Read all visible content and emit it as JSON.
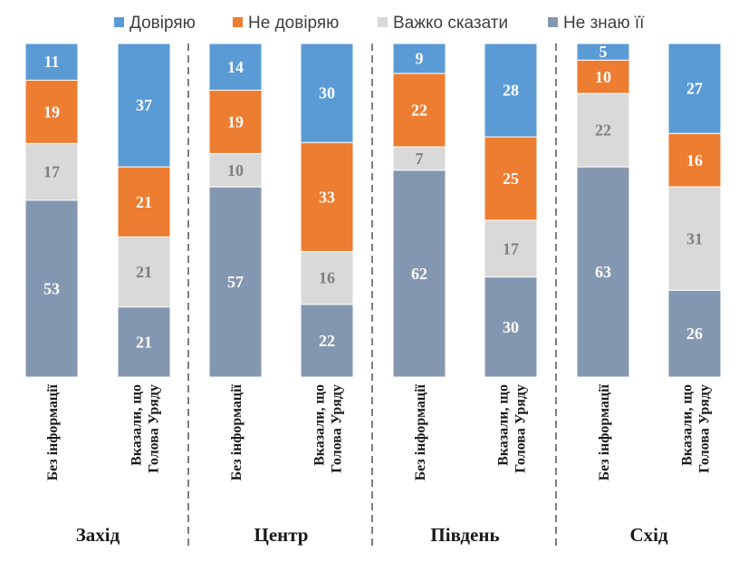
{
  "chart_data": {
    "type": "bar",
    "stacked": true,
    "legend_position": "top",
    "ylim": [
      0,
      100
    ],
    "legend": [
      {
        "name": "Довіряю",
        "color": "#5B9BD5"
      },
      {
        "name": "Не довіряю",
        "color": "#ED7D31"
      },
      {
        "name": "Важко сказати",
        "color": "#D9D9D9"
      },
      {
        "name": "Не знаю її",
        "color": "#8497B0"
      }
    ],
    "series_order_top_to_bottom": [
      "Довіряю",
      "Не довіряю",
      "Важко сказати",
      "Не знаю її"
    ],
    "label_colors": {
      "Довіряю": "#ffffff",
      "Не довіряю": "#ffffff",
      "Важко сказати": "#7f7f7f",
      "Не знаю її": "#ffffff"
    },
    "categories": [
      "Без інформації",
      "Вказали, що Голова Уряду"
    ],
    "category_lines": [
      [
        "Без інформації"
      ],
      [
        "Вказали, що",
        "Голова Уряду"
      ]
    ],
    "groups": [
      {
        "region": "Захід",
        "bars": [
          {
            "category": "Без інформації",
            "values": [
              11,
              19,
              17,
              53
            ]
          },
          {
            "category": "Вказали, що Голова Уряду",
            "values": [
              37,
              21,
              21,
              21
            ]
          }
        ]
      },
      {
        "region": "Центр",
        "bars": [
          {
            "category": "Без інформації",
            "values": [
              14,
              19,
              10,
              57
            ]
          },
          {
            "category": "Вказали, що Голова Уряду",
            "values": [
              30,
              33,
              16,
              22
            ]
          }
        ]
      },
      {
        "region": "Південь",
        "bars": [
          {
            "category": "Без інформації",
            "values": [
              9,
              22,
              7,
              62
            ]
          },
          {
            "category": "Вказали, що Голова Уряду",
            "values": [
              28,
              25,
              17,
              30
            ]
          }
        ]
      },
      {
        "region": "Схід",
        "bars": [
          {
            "category": "Без інформації",
            "values": [
              5,
              10,
              22,
              63
            ]
          },
          {
            "category": "Вказали, що Голова Уряду",
            "values": [
              27,
              16,
              31,
              26
            ]
          }
        ]
      }
    ]
  }
}
